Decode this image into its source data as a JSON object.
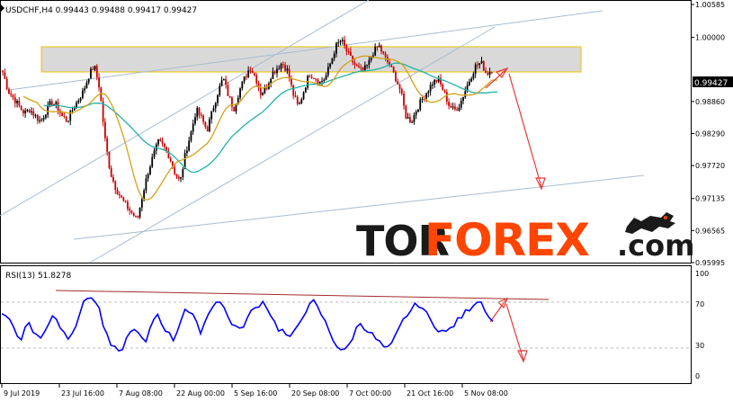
{
  "header": {
    "symbol_line": "USDCHF,H4  0.99443 0.99488 0.99417 0.99427"
  },
  "rsi_header": {
    "label": "RSI(13) 51.8278"
  },
  "watermark": {
    "part1": "TOR",
    "part2": "FOREX",
    "part3": ".com"
  },
  "colors": {
    "bull_candle": "#000000",
    "bear_candle": "#cc0000",
    "ma_fast": "#d4a017",
    "ma_slow": "#20b2aa",
    "rsi_line": "#0000ff",
    "channel": "#a8bcd0",
    "zone_fill": "#d9d9d9",
    "zone_border": "#f0c000",
    "arrow": "#e53935",
    "rsi_trend": "#a52a2a",
    "watermark_dark": "#1a1a1a",
    "watermark_accent": "#ff4500"
  },
  "chart_data": {
    "type": "candlestick",
    "price_axis_ticks": [
      "1.00585",
      "1.00000",
      "0.99427",
      "0.98860",
      "0.98290",
      "0.97720",
      "0.97135",
      "0.96565",
      "0.95995"
    ],
    "current_price": "0.99427",
    "ylim": [
      0.95995,
      1.00585
    ],
    "x_tick_labels": [
      "9 Jul 2019",
      "23 Jul 16:00",
      "7 Aug 08:00",
      "22 Aug 00:00",
      "5 Sep 16:00",
      "20 Sep 08:00",
      "7 Oct 00:00",
      "21 Oct 16:00",
      "5 Nov 08:00"
    ],
    "close_path": [
      0.9938,
      0.9905,
      0.9892,
      0.9878,
      0.9865,
      0.9872,
      0.9861,
      0.985,
      0.9868,
      0.9885,
      0.9879,
      0.986,
      0.9852,
      0.9872,
      0.9888,
      0.9905,
      0.9932,
      0.995,
      0.991,
      0.982,
      0.976,
      0.9732,
      0.9715,
      0.97,
      0.9688,
      0.9675,
      0.972,
      0.976,
      0.979,
      0.9815,
      0.9805,
      0.9788,
      0.976,
      0.9742,
      0.9795,
      0.983,
      0.9872,
      0.9855,
      0.9835,
      0.987,
      0.9902,
      0.9928,
      0.9895,
      0.9873,
      0.9905,
      0.9928,
      0.9947,
      0.993,
      0.99,
      0.991,
      0.9935,
      0.9945,
      0.9955,
      0.994,
      0.99,
      0.9875,
      0.9905,
      0.9935,
      0.993,
      0.992,
      0.9928,
      0.9955,
      0.9985,
      0.9995,
      0.9975,
      0.9958,
      0.9945,
      0.994,
      0.9952,
      0.9975,
      0.9985,
      0.9965,
      0.995,
      0.993,
      0.9905,
      0.986,
      0.985,
      0.9872,
      0.989,
      0.9905,
      0.992,
      0.9925,
      0.9905,
      0.988,
      0.987,
      0.988,
      0.9905,
      0.9928,
      0.995,
      0.9955,
      0.9935,
      0.9943
    ],
    "rsi": {
      "period": 13,
      "value": 51.8278,
      "levels": [
        70,
        30
      ],
      "axis_ticks": [
        "100",
        "70",
        "30",
        "0"
      ],
      "values": [
        62,
        58,
        55,
        48,
        40,
        38,
        46,
        52,
        44,
        40,
        36,
        43,
        52,
        60,
        56,
        48,
        42,
        38,
        44,
        50,
        62,
        70,
        76,
        78,
        72,
        65,
        50,
        38,
        30,
        26,
        22,
        28,
        36,
        42,
        48,
        40,
        36,
        32,
        44,
        56,
        60,
        52,
        46,
        40,
        36,
        44,
        56,
        66,
        62,
        58,
        50,
        44,
        52,
        60,
        68,
        74,
        72,
        66,
        58,
        52,
        48,
        44,
        50,
        56,
        62,
        66,
        70,
        72,
        68,
        60,
        52,
        46,
        44,
        40,
        36,
        42,
        50,
        58,
        64,
        68,
        72,
        66,
        60,
        52,
        44,
        36,
        30,
        26,
        24,
        30,
        38,
        46,
        52,
        48,
        44,
        40,
        36,
        32,
        28,
        26,
        30,
        38,
        46,
        54,
        60,
        64,
        68,
        70,
        66,
        60,
        54,
        50,
        46,
        44,
        42,
        46,
        50,
        54,
        58,
        62,
        66,
        70,
        74,
        72,
        66,
        58,
        52
      ]
    }
  }
}
